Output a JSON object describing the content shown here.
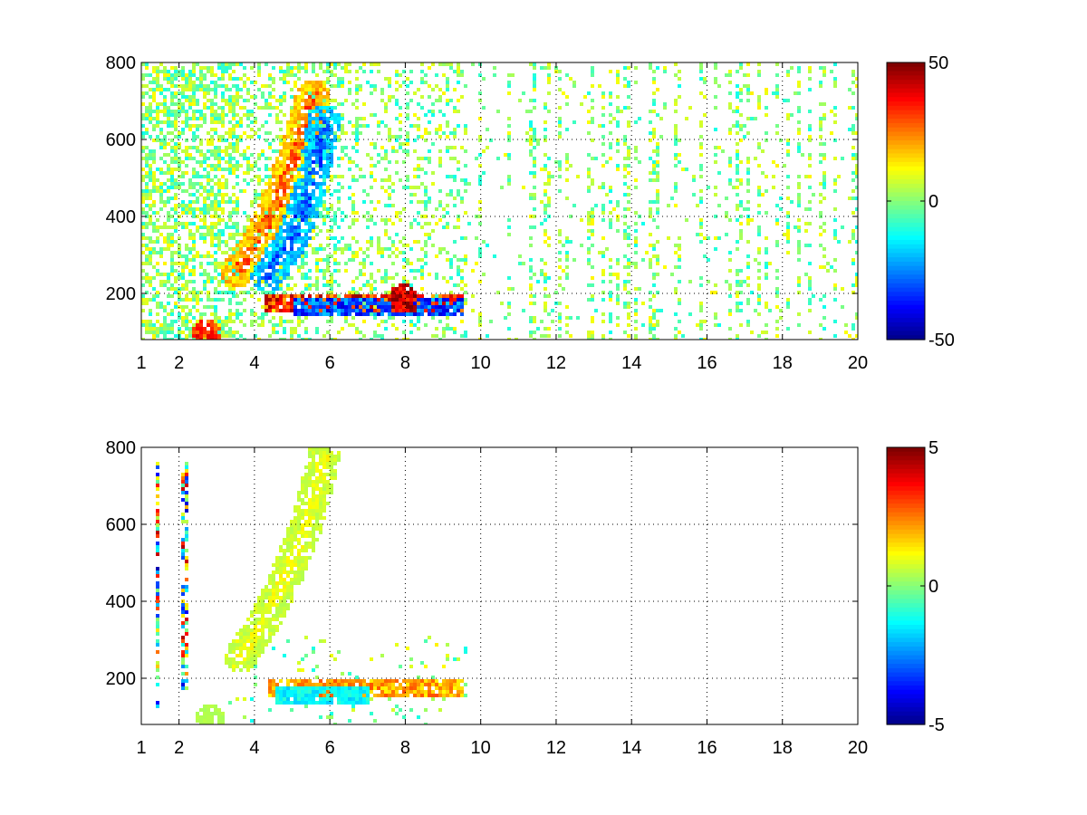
{
  "chart_data": [
    {
      "type": "heatmap",
      "title": "",
      "xlabel": "",
      "ylabel": "",
      "xlim": [
        1,
        20
      ],
      "ylim": [
        80,
        800
      ],
      "xticks": [
        1,
        2,
        4,
        6,
        8,
        10,
        12,
        14,
        16,
        18,
        20
      ],
      "yticks": [
        200,
        400,
        600,
        800
      ],
      "grid": true,
      "colormap": "jet",
      "colorbar": {
        "min": -50,
        "max": 50,
        "ticks": [
          50,
          0,
          -50
        ]
      },
      "features": [
        {
          "kind": "ridge",
          "points": [
            [
              3.5,
              260
            ],
            [
              4.0,
              330
            ],
            [
              4.5,
              430
            ],
            [
              5.0,
              560
            ],
            [
              5.5,
              720
            ]
          ],
          "value": 25
        },
        {
          "kind": "ridge",
          "points": [
            [
              4.3,
              250
            ],
            [
              5.0,
              350
            ],
            [
              5.5,
              500
            ],
            [
              5.8,
              650
            ]
          ],
          "value": -25
        },
        {
          "kind": "band",
          "x_range": [
            4.2,
            9.5
          ],
          "y": 180,
          "value": 40
        },
        {
          "kind": "band",
          "x_range": [
            5.0,
            9.5
          ],
          "y": 165,
          "value": -35
        },
        {
          "kind": "blob",
          "x": 2.7,
          "y": 100,
          "value": 35
        },
        {
          "kind": "blob",
          "x": 7.9,
          "y": 190,
          "value": 45
        }
      ]
    },
    {
      "type": "heatmap",
      "title": "",
      "xlabel": "",
      "ylabel": "",
      "xlim": [
        1,
        20
      ],
      "ylim": [
        80,
        800
      ],
      "xticks": [
        1,
        2,
        4,
        6,
        8,
        10,
        12,
        14,
        16,
        18,
        20
      ],
      "yticks": [
        200,
        400,
        600,
        800
      ],
      "grid": true,
      "colormap": "jet",
      "colorbar": {
        "min": -5,
        "max": 5,
        "ticks": [
          5,
          0,
          -5
        ]
      },
      "features": [
        {
          "kind": "ridge",
          "points": [
            [
              3.6,
              260
            ],
            [
              4.2,
              350
            ],
            [
              4.8,
              470
            ],
            [
              5.4,
              620
            ],
            [
              5.8,
              780
            ]
          ],
          "value": 1
        },
        {
          "kind": "band",
          "x_range": [
            4.3,
            9.5
          ],
          "y": 180,
          "value": 2.5
        },
        {
          "kind": "band",
          "x_range": [
            4.5,
            7.0
          ],
          "y": 160,
          "value": -1.5
        },
        {
          "kind": "vline",
          "x": 1.4,
          "y_range": [
            130,
            790
          ],
          "value": 0
        },
        {
          "kind": "vline",
          "x": 2.1,
          "y_range": [
            170,
            770
          ],
          "value": 0
        },
        {
          "kind": "blob",
          "x": 2.8,
          "y": 100,
          "value": 0.5
        }
      ]
    }
  ]
}
